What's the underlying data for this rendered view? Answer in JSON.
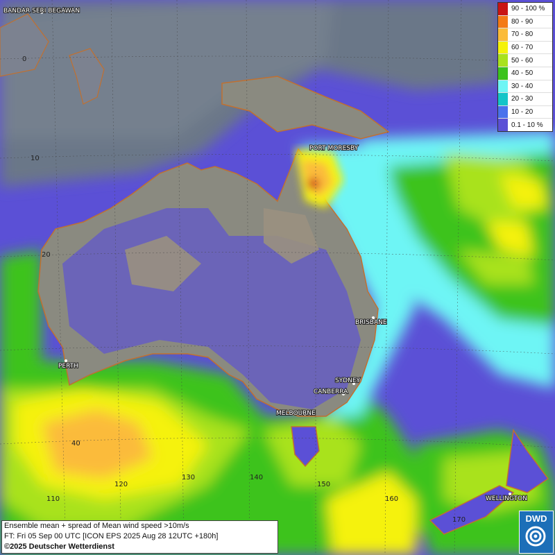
{
  "map": {
    "cities": [
      {
        "name": "BANDAR SERI BEGAWAN"
      },
      {
        "name": "PORT MORESBY"
      },
      {
        "name": "BRISBANE"
      },
      {
        "name": "PERTH"
      },
      {
        "name": "SYDNEY"
      },
      {
        "name": "CANBERRA"
      },
      {
        "name": "MELBOURNE"
      },
      {
        "name": "WELLINGTON"
      }
    ],
    "lat_labels": [
      "0",
      "10",
      "20",
      "40"
    ],
    "lon_labels": [
      "110",
      "120",
      "130",
      "140",
      "150",
      "160",
      "170"
    ]
  },
  "legend": {
    "items": [
      {
        "label": "90 - 100 %",
        "color": "#c81414"
      },
      {
        "label": "80 - 90",
        "color": "#f47a16"
      },
      {
        "label": "70 - 80",
        "color": "#fbbb3a"
      },
      {
        "label": "60 - 70",
        "color": "#f5f20a"
      },
      {
        "label": "50 - 60",
        "color": "#a9e21e"
      },
      {
        "label": "40 - 50",
        "color": "#3cc31e"
      },
      {
        "label": "30 - 40",
        "color": "#6ef5f5"
      },
      {
        "label": "20 - 30",
        "color": "#14c5c8"
      },
      {
        "label": "10 - 20",
        "color": "#4a72ec"
      },
      {
        "label": "0.1 - 10 %",
        "color": "#5b50d6"
      }
    ]
  },
  "info": {
    "line1": "Ensemble mean + spread of Mean wind speed >10m/s",
    "line2": "FT: Fri 05 Sep 00 UTC [ICON EPS 2025 Aug 28 12UTC +180h]",
    "line3": "©2025 Deutscher Wetterdienst"
  },
  "logo": {
    "text": "DWD"
  }
}
